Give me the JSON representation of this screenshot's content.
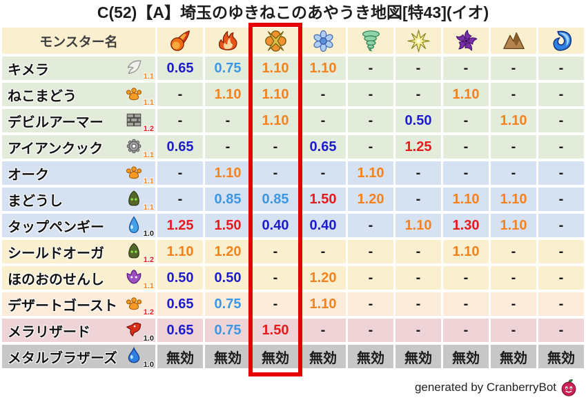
{
  "title": "C(52)【A】埼玉のゆきねこのあやうき地図[特43](イオ)",
  "credit": "generated by CranberryBot",
  "table": {
    "name_header": "モンスター名",
    "element_columns": [
      {
        "icon": "fireball-icon",
        "highlighted": false
      },
      {
        "icon": "flame-icon",
        "highlighted": false
      },
      {
        "icon": "explosion-icon",
        "highlighted": true
      },
      {
        "icon": "snowflake-icon",
        "highlighted": false
      },
      {
        "icon": "tornado-icon",
        "highlighted": false
      },
      {
        "icon": "spark-icon",
        "highlighted": false
      },
      {
        "icon": "pinwheel-icon",
        "highlighted": false
      },
      {
        "icon": "mountain-icon",
        "highlighted": false
      },
      {
        "icon": "wave-icon",
        "highlighted": false
      }
    ],
    "rows": [
      {
        "name": "キメラ",
        "family_icon": "wing-icon",
        "modifier": "1.1",
        "modifier_color": "orange",
        "row_color": "green",
        "values": [
          "0.65",
          "0.75",
          "1.10",
          "1.10",
          "-",
          "-",
          "-",
          "-",
          "-"
        ]
      },
      {
        "name": "ねこまどう",
        "family_icon": "paw-icon",
        "modifier": "1.1",
        "modifier_color": "orange",
        "row_color": "green",
        "values": [
          "-",
          "1.10",
          "1.10",
          "-",
          "-",
          "-",
          "1.10",
          "-",
          "-"
        ]
      },
      {
        "name": "デビルアーマー",
        "family_icon": "brick-icon",
        "modifier": "1.2",
        "modifier_color": "red",
        "row_color": "green",
        "values": [
          "-",
          "-",
          "1.10",
          "-",
          "-",
          "0.50",
          "-",
          "1.10",
          "-"
        ]
      },
      {
        "name": "アイアンクック",
        "family_icon": "gear-icon",
        "modifier": "1.1",
        "modifier_color": "orange",
        "row_color": "green",
        "values": [
          "0.65",
          "-",
          "-",
          "0.65",
          "-",
          "1.25",
          "-",
          "-",
          "-"
        ]
      },
      {
        "name": "オーク",
        "family_icon": "paw-icon",
        "modifier": "1.1",
        "modifier_color": "orange",
        "row_color": "blue",
        "values": [
          "-",
          "1.10",
          "-",
          "-",
          "1.10",
          "-",
          "-",
          "-",
          "-"
        ]
      },
      {
        "name": "まどうし",
        "family_icon": "hood-icon",
        "modifier": "1.1",
        "modifier_color": "orange",
        "row_color": "blue",
        "values": [
          "-",
          "0.85",
          "0.85",
          "1.50",
          "1.20",
          "-",
          "1.10",
          "1.10",
          "-"
        ]
      },
      {
        "name": "タップペンギー",
        "family_icon": "drop-icon",
        "modifier": "1.0",
        "modifier_color": "black",
        "row_color": "blue",
        "values": [
          "1.25",
          "1.50",
          "0.40",
          "0.40",
          "-",
          "1.10",
          "1.30",
          "1.10",
          "-"
        ]
      },
      {
        "name": "シールドオーガ",
        "family_icon": "hood-icon",
        "modifier": "1.2",
        "modifier_color": "red",
        "row_color": "cream",
        "values": [
          "1.10",
          "1.20",
          "-",
          "-",
          "-",
          "-",
          "1.10",
          "-",
          "-"
        ]
      },
      {
        "name": "ほのおのせんし",
        "family_icon": "fiend-icon",
        "modifier": "1.1",
        "modifier_color": "orange",
        "row_color": "cream",
        "values": [
          "0.50",
          "0.50",
          "-",
          "1.20",
          "-",
          "-",
          "-",
          "-",
          "-"
        ]
      },
      {
        "name": "デザートゴースト",
        "family_icon": "paw-icon",
        "modifier": "1.2",
        "modifier_color": "red",
        "row_color": "peach",
        "values": [
          "0.65",
          "0.75",
          "-",
          "1.10",
          "-",
          "-",
          "-",
          "-",
          "-"
        ]
      },
      {
        "name": "メラリザード",
        "family_icon": "dragon-icon",
        "modifier": "1.0",
        "modifier_color": "black",
        "row_color": "pink",
        "values": [
          "0.65",
          "0.75",
          "1.50",
          "-",
          "-",
          "-",
          "-",
          "-",
          "-"
        ]
      },
      {
        "name": "メタルブラザーズ",
        "family_icon": "slime-icon",
        "modifier": "1.0",
        "modifier_color": "black",
        "row_color": "gray",
        "values": [
          "無効",
          "無効",
          "無効",
          "無効",
          "無効",
          "無効",
          "無効",
          "無効",
          "無効"
        ]
      }
    ]
  },
  "colors": {
    "header_bg": "#faf0d0",
    "row_bg": {
      "green": "#e3ecdb",
      "blue": "#d6e2f2",
      "cream": "#faf0cf",
      "peach": "#fcecd9",
      "pink": "#efd4d7",
      "gray": "#c7c7c7"
    },
    "value": {
      "resist_strong": "#1c1ccd",
      "resist": "#3b97e4",
      "weak": "#f5821d",
      "weak_strong": "#e8191c",
      "neutral": "#1a1a1a"
    },
    "modifier": {
      "orange": "#f5821d",
      "red": "#e8191c",
      "black": "#1a1a1a"
    },
    "highlight_border": "#e60000"
  }
}
